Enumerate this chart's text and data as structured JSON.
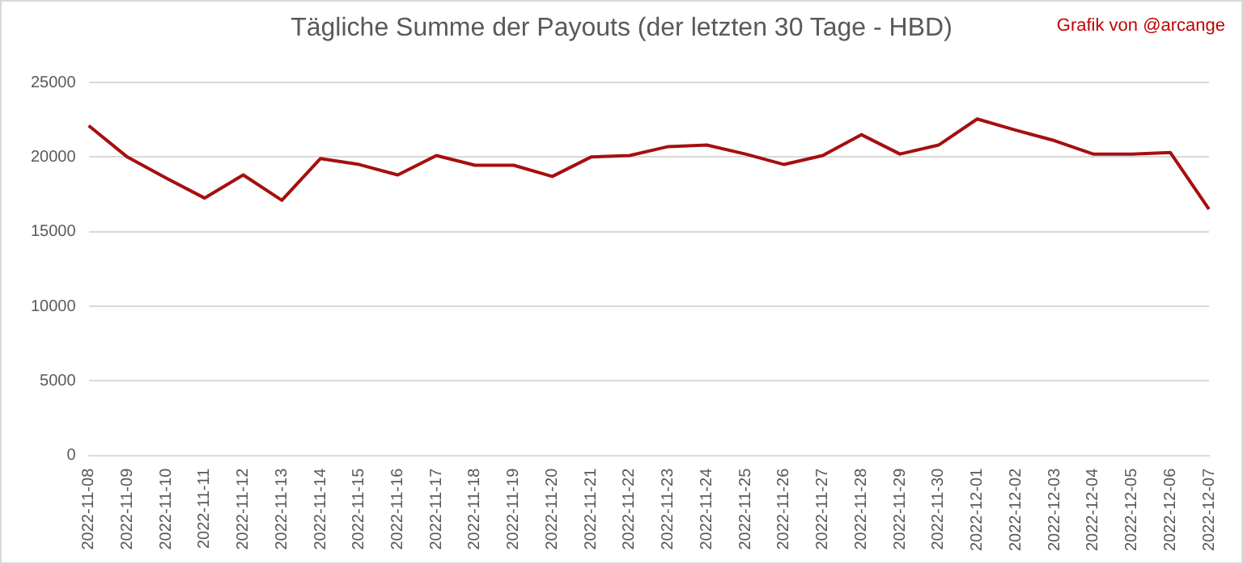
{
  "chart_data": {
    "type": "line",
    "title": "Tägliche Summe der Payouts (der letzten 30 Tage - HBD)",
    "annotations": [
      "Grafik von @arcange"
    ],
    "categories": [
      "2022-11-08",
      "2022-11-09",
      "2022-11-10",
      "2022-11-11",
      "2022-11-12",
      "2022-11-13",
      "2022-11-14",
      "2022-11-15",
      "2022-11-16",
      "2022-11-17",
      "2022-11-18",
      "2022-11-19",
      "2022-11-20",
      "2022-11-21",
      "2022-11-22",
      "2022-11-23",
      "2022-11-24",
      "2022-11-25",
      "2022-11-26",
      "2022-11-27",
      "2022-11-28",
      "2022-11-29",
      "2022-11-30",
      "2022-12-01",
      "2022-12-02",
      "2022-12-03",
      "2022-12-04",
      "2022-12-05",
      "2022-12-06",
      "2022-12-07"
    ],
    "series": [
      {
        "color": "#a50f0f",
        "values": [
          22100,
          20000,
          18600,
          17250,
          18800,
          17100,
          19900,
          19500,
          18800,
          20100,
          19450,
          19450,
          18700,
          20000,
          20100,
          20700,
          20800,
          20200,
          19500,
          20100,
          21500,
          20200,
          20800,
          22550,
          21800,
          21100,
          20200,
          20200,
          20300,
          16500
        ]
      }
    ],
    "ylim": [
      0,
      25000
    ],
    "yticks": [
      0,
      5000,
      10000,
      15000,
      20000,
      25000
    ],
    "grid": "y",
    "legend": false,
    "marker": "none",
    "line_style": "solid"
  }
}
